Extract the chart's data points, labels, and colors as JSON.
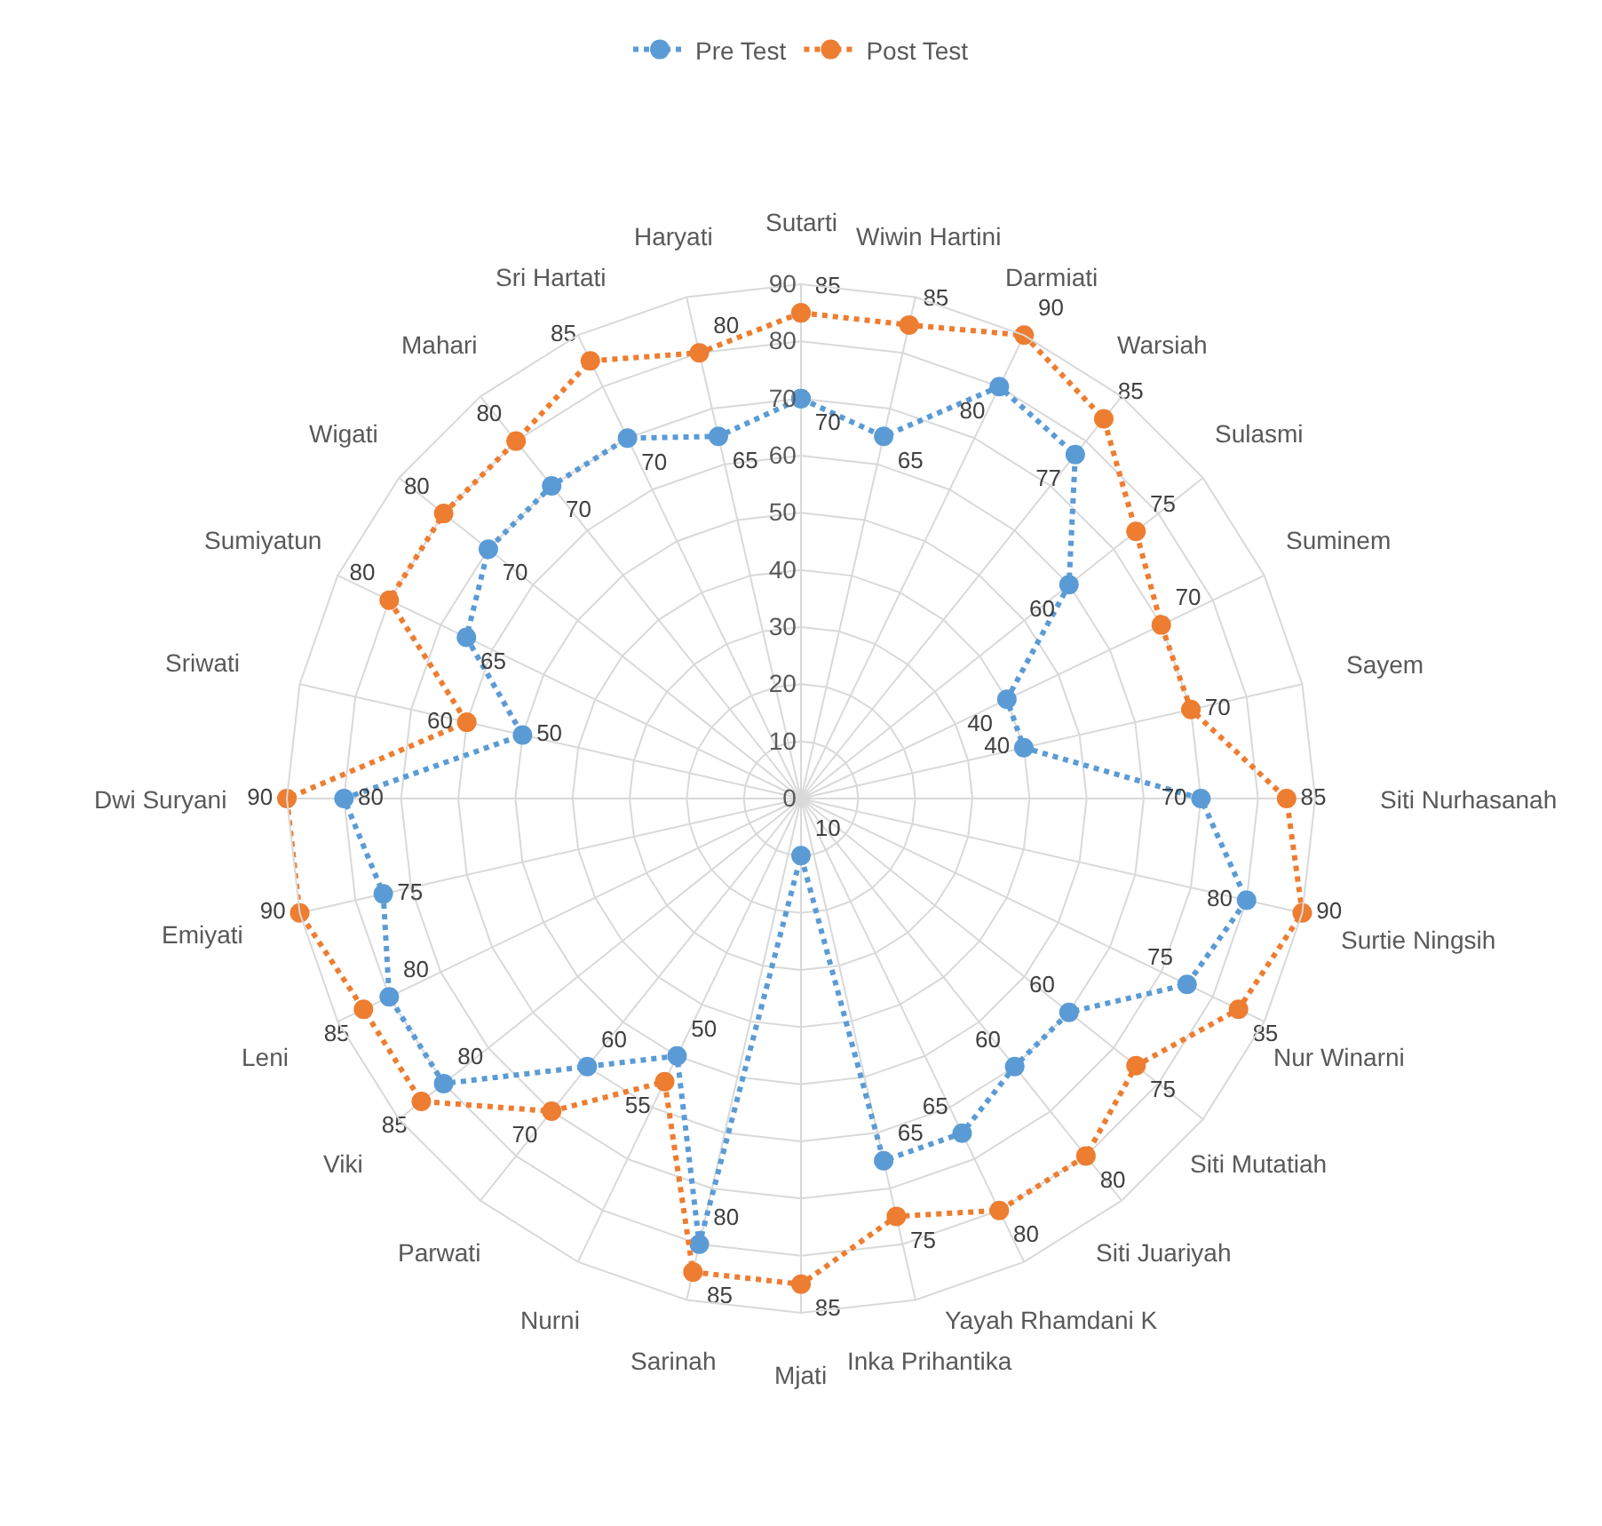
{
  "chart_data": {
    "type": "radar",
    "categories": [
      "Sutarti",
      "Wiwin Hartini",
      "Darmiati",
      "Warsiah",
      "Sulasmi",
      "Suminem",
      "Sayem",
      "Siti Nurhasanah",
      "Surtie Ningsih",
      "Nur Winarni",
      "Siti Mutatiah",
      "Siti Juariyah",
      "Yayah Rhamdani K",
      "Inka Prihantika",
      "Mjati",
      "Sarinah",
      "Nurni",
      "Parwati",
      "Viki",
      "Leni",
      "Emiyati",
      "Dwi Suryani",
      "Sriwati",
      "Sumiyatun",
      "Wigati",
      "Mahari",
      "Sri Hartati",
      "Haryati"
    ],
    "series": [
      {
        "name": "Pre Test",
        "color": "#5b9bd5",
        "values": [
          70,
          65,
          80,
          77,
          60,
          40,
          40,
          70,
          80,
          75,
          60,
          60,
          65,
          65,
          10,
          80,
          50,
          60,
          80,
          80,
          75,
          80,
          50,
          65,
          70,
          70,
          70,
          65
        ]
      },
      {
        "name": "Post Test",
        "color": "#ed7d31",
        "values": [
          85,
          85,
          90,
          85,
          75,
          70,
          70,
          85,
          90,
          85,
          75,
          80,
          80,
          75,
          85,
          85,
          55,
          70,
          85,
          85,
          90,
          90,
          60,
          80,
          80,
          80,
          85,
          80
        ]
      }
    ],
    "ylim": [
      0,
      90
    ],
    "yticks": [
      0,
      10,
      20,
      30,
      40,
      50,
      60,
      70,
      80,
      90
    ],
    "grid": true,
    "legend": "top",
    "marker": "circle",
    "line_style": "dotted",
    "data_labels": true
  }
}
